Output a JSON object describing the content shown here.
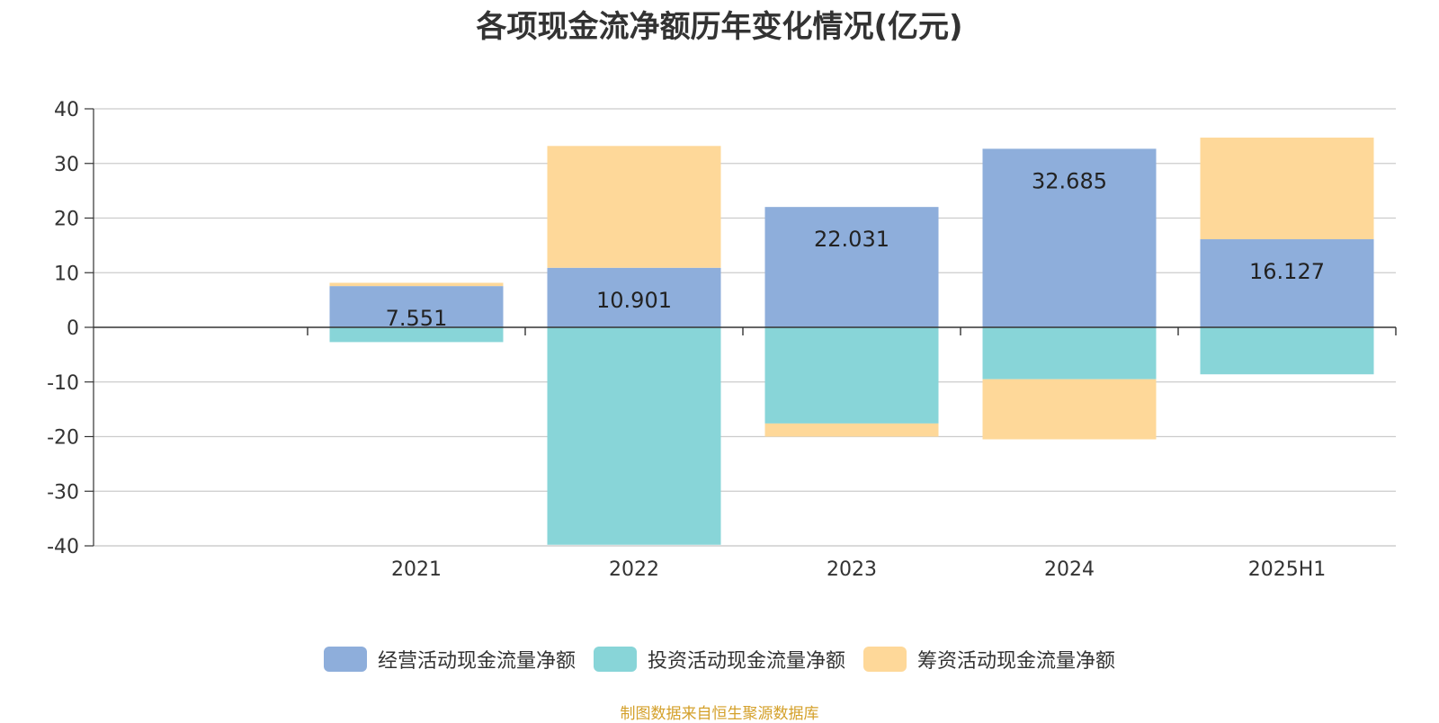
{
  "chart_data": {
    "type": "bar",
    "stacked": true,
    "title": "各项现金流净额历年变化情况(亿元)",
    "categories": [
      "2021",
      "2022",
      "2023",
      "2024",
      "2025H1"
    ],
    "ylim": [
      -40,
      40
    ],
    "yticks": [
      40,
      30,
      20,
      10,
      0,
      -10,
      -20,
      -30,
      -40
    ],
    "grid": true,
    "legend_position": "bottom",
    "series": [
      {
        "name": "经营活动现金流量净额",
        "color": "#8eaedb",
        "values": [
          7.551,
          10.901,
          22.031,
          32.685,
          16.127
        ],
        "data_labels": [
          "7.551",
          "10.901",
          "22.031",
          "32.685",
          "16.127"
        ]
      },
      {
        "name": "投资活动现金流量净额",
        "color": "#88d5d8",
        "values": [
          -2.7,
          -39.8,
          -17.6,
          -9.5,
          -8.6
        ]
      },
      {
        "name": "筹资活动现金流量净额",
        "color": "#fed899",
        "values": [
          0.6,
          22.3,
          -2.4,
          -11.0,
          18.6
        ]
      }
    ]
  },
  "footer": {
    "source": "制图数据来自恒生聚源数据库"
  }
}
